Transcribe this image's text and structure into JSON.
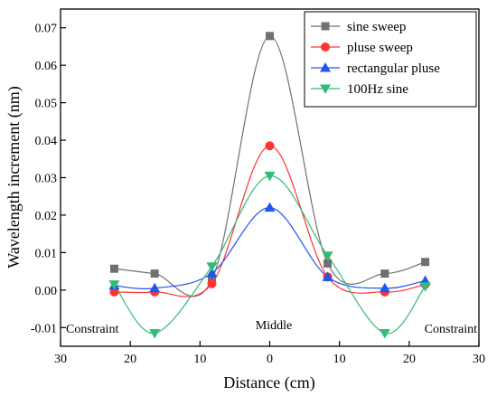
{
  "chart_data": {
    "type": "line",
    "xlabel": "Distance (cm)",
    "ylabel": "Wavelength increment (nm)",
    "xlim": [
      -30,
      30
    ],
    "ylim": [
      -0.015,
      0.075
    ],
    "x_tick_values": [
      -30,
      -20,
      -10,
      0,
      10,
      20,
      30
    ],
    "x_tick_labels": [
      "30",
      "20",
      "10",
      "0",
      "10",
      "20",
      "30"
    ],
    "y_tick_values": [
      -0.01,
      0.0,
      0.01,
      0.02,
      0.03,
      0.04,
      0.05,
      0.06,
      0.07
    ],
    "y_tick_labels": [
      "-0.01",
      "0.00",
      "0.01",
      "0.02",
      "0.03",
      "0.04",
      "0.05",
      "0.06",
      "0.07"
    ],
    "grid": false,
    "legend_position": "top-right",
    "x": [
      -22.3,
      -16.5,
      -8.3,
      0,
      8.3,
      16.5,
      22.3
    ],
    "series": [
      {
        "name": "sine sweep",
        "color": "#707070",
        "marker": "square",
        "values": [
          0.0057,
          0.0044,
          0.0027,
          0.0678,
          0.0071,
          0.0044,
          0.0075
        ]
      },
      {
        "name": "pluse sweep",
        "color": "#ff3333",
        "marker": "circle",
        "values": [
          -0.0005,
          -0.0005,
          0.0017,
          0.0385,
          0.0035,
          -0.0005,
          0.0015
        ]
      },
      {
        "name": "rectangular pluse",
        "color": "#2255ee",
        "marker": "triangle-up",
        "values": [
          0.0012,
          0.0005,
          0.0045,
          0.022,
          0.0035,
          0.0005,
          0.0025
        ]
      },
      {
        "name": "100Hz sine",
        "color": "#33bb77",
        "marker": "triangle-down",
        "values": [
          0.0015,
          -0.0115,
          0.0063,
          0.0305,
          0.0092,
          -0.0115,
          0.001
        ]
      }
    ],
    "annotations": [
      "Constraint",
      "Middle",
      "Constraint"
    ]
  }
}
